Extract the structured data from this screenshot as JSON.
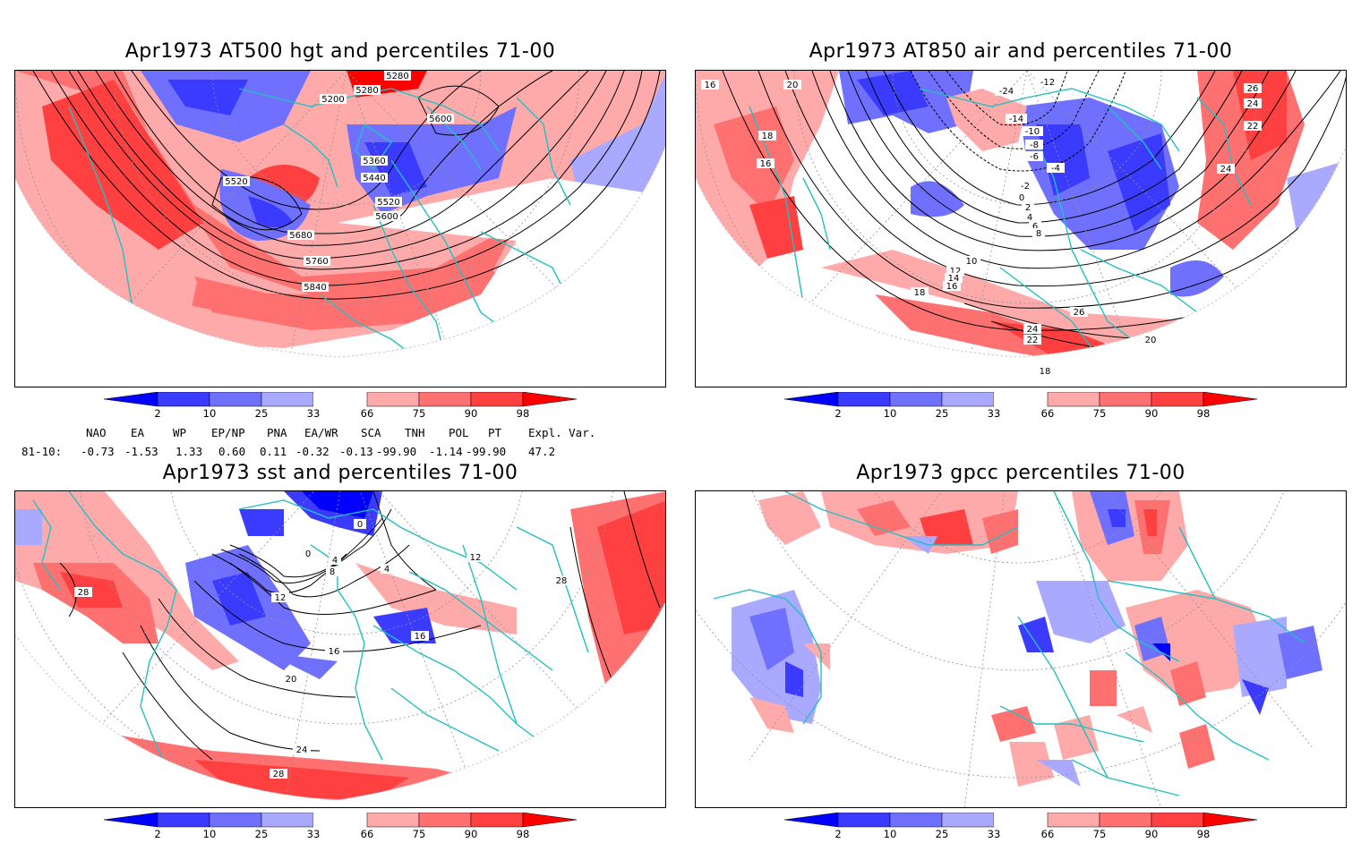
{
  "panels": [
    {
      "id": "p1",
      "title": "Apr1973 AT500 hgt and percentiles 71-00",
      "contour_labels": [
        "5280",
        "5280",
        "5200",
        "5600",
        "5360",
        "5440",
        "5520",
        "5520",
        "5600",
        "5680",
        "5760",
        "5840"
      ]
    },
    {
      "id": "p2",
      "title": "Apr1973 AT850 air and percentiles 71-00",
      "contour_labels": [
        "16",
        "20",
        "-12",
        "-24",
        "26",
        "24",
        "22",
        "-14",
        "-10",
        "-8",
        "-6",
        "-4",
        "-2",
        "0",
        "2",
        "4",
        "6",
        "8",
        "18",
        "16",
        "24",
        "10",
        "12",
        "14",
        "16",
        "18",
        "26",
        "24",
        "22",
        "20",
        "18"
      ]
    },
    {
      "id": "p3",
      "title": "Apr1973 sst and percentiles 71-00",
      "contour_labels": [
        "28",
        "0",
        "0",
        "4",
        "8",
        "4",
        "12",
        "12",
        "16",
        "16",
        "20",
        "24",
        "28",
        "28"
      ]
    },
    {
      "id": "p4",
      "title": "Apr1973 gpcc percentiles 71-00",
      "contour_labels": []
    }
  ],
  "colorbar": {
    "ticks": [
      "2",
      "10",
      "25",
      "33",
      "66",
      "75",
      "90",
      "98"
    ],
    "colors": [
      "#0000ff",
      "#3b3bff",
      "#7070ff",
      "#a9a9ff",
      "#ffffff",
      "#ffaaaa",
      "#ff7070",
      "#ff4040",
      "#ff0000"
    ]
  },
  "indices": {
    "headers": [
      "NAO",
      "EA",
      "WP",
      "EP/NP",
      "PNA",
      "EA/WR",
      "SCA",
      "TNH",
      "POL",
      "PT",
      "Expl. Var."
    ],
    "row_label": "81-10:",
    "values": [
      "-0.73",
      "-1.53",
      "1.33",
      "0.60",
      "0.11",
      "-0.32",
      "-0.13",
      "-99.90",
      "-1.14",
      "-99.90",
      "47.2"
    ]
  },
  "colors": {
    "coast": "#22c0c0",
    "contour": "#000000",
    "grid": "#909090"
  }
}
